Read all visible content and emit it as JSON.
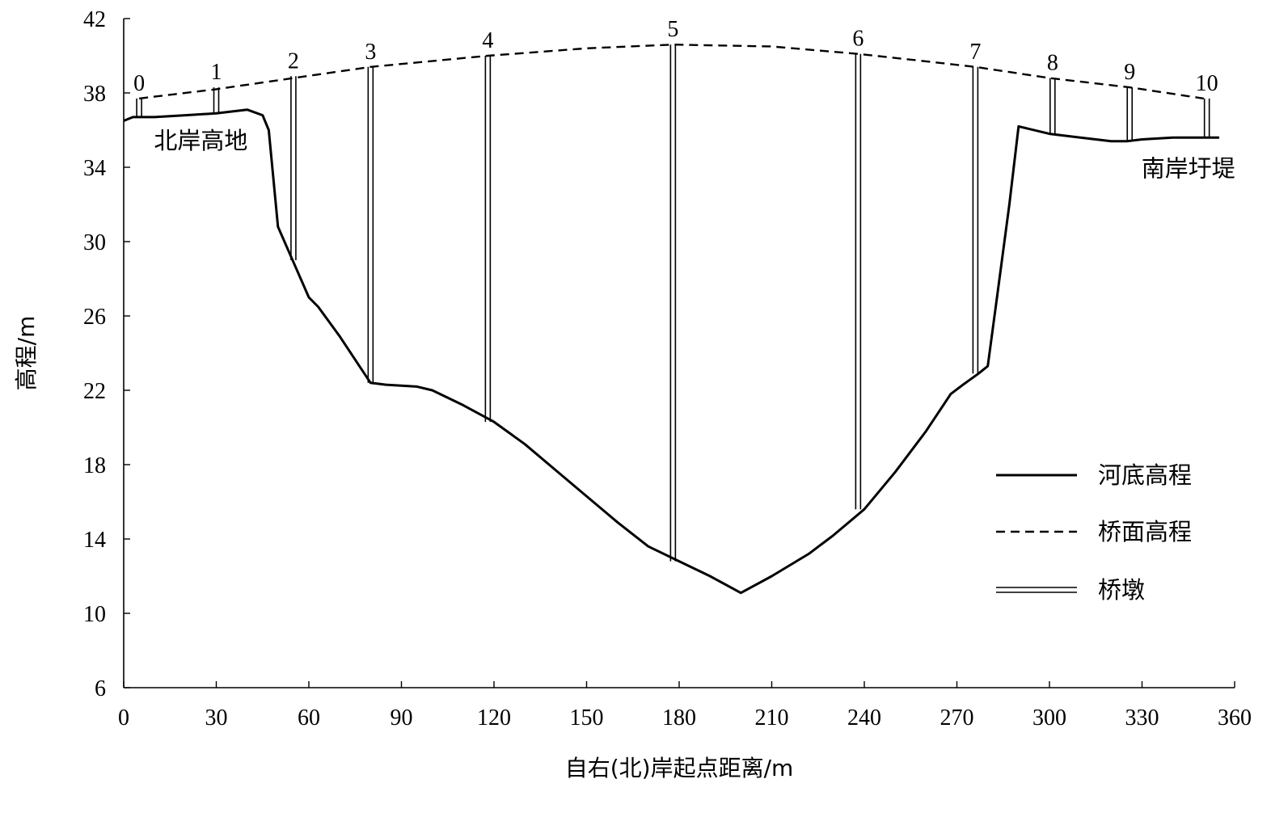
{
  "chart_data": {
    "type": "line",
    "title": "",
    "xlabel": "自右(北)岸起点距离/m",
    "ylabel": "高程/m",
    "xlim": [
      0,
      360
    ],
    "ylim": [
      6,
      42
    ],
    "x_ticks": [
      0,
      30,
      60,
      90,
      120,
      150,
      180,
      210,
      240,
      270,
      300,
      330,
      360
    ],
    "y_ticks": [
      6,
      10,
      14,
      18,
      22,
      26,
      30,
      34,
      38,
      42
    ],
    "grid": false,
    "legend_position": "right",
    "legend": [
      "河底高程",
      "桥面高程",
      "桥墩"
    ],
    "series": [
      {
        "name": "河底高程",
        "style": "solid",
        "x": [
          0,
          3,
          10,
          20,
          30,
          40,
          45,
          47,
          50,
          55,
          60,
          63,
          70,
          80,
          85,
          95,
          100,
          110,
          120,
          130,
          140,
          150,
          160,
          170,
          180,
          190,
          200,
          210,
          222,
          230,
          240,
          250,
          260,
          268,
          272,
          277,
          280,
          283,
          287,
          290,
          300,
          310,
          320,
          325,
          330,
          340,
          350,
          355
        ],
        "y": [
          36.5,
          36.7,
          36.7,
          36.8,
          36.9,
          37.1,
          36.8,
          36.0,
          30.8,
          28.9,
          27.0,
          26.5,
          24.9,
          22.4,
          22.3,
          22.2,
          22.0,
          21.2,
          20.3,
          19.1,
          17.7,
          16.3,
          14.9,
          13.6,
          12.8,
          12.0,
          11.1,
          12.0,
          13.2,
          14.2,
          15.6,
          17.6,
          19.8,
          21.8,
          22.3,
          22.9,
          23.3,
          27.0,
          32.0,
          36.2,
          35.8,
          35.6,
          35.4,
          35.4,
          35.5,
          35.6,
          35.6,
          35.6
        ]
      },
      {
        "name": "桥面高程",
        "style": "dashed",
        "x": [
          5,
          30,
          55,
          80,
          118,
          150,
          178,
          210,
          238,
          260,
          276,
          300,
          326,
          350
        ],
        "y": [
          37.7,
          38.2,
          38.8,
          39.4,
          40.0,
          40.4,
          40.6,
          40.5,
          40.1,
          39.7,
          39.4,
          38.8,
          38.3,
          37.7
        ]
      }
    ],
    "piers": [
      {
        "label": "0",
        "x": 5,
        "top": 37.7,
        "bottom": 36.7
      },
      {
        "label": "1",
        "x": 30,
        "top": 38.3,
        "bottom": 36.9
      },
      {
        "label": "2",
        "x": 55,
        "top": 38.9,
        "bottom": 29.0
      },
      {
        "label": "3",
        "x": 80,
        "top": 39.4,
        "bottom": 22.4
      },
      {
        "label": "4",
        "x": 118,
        "top": 40.0,
        "bottom": 20.3
      },
      {
        "label": "5",
        "x": 178,
        "top": 40.6,
        "bottom": 12.8
      },
      {
        "label": "6",
        "x": 238,
        "top": 40.1,
        "bottom": 15.6
      },
      {
        "label": "7",
        "x": 276,
        "top": 39.4,
        "bottom": 22.9
      },
      {
        "label": "8",
        "x": 301,
        "top": 38.8,
        "bottom": 35.8
      },
      {
        "label": "9",
        "x": 326,
        "top": 38.3,
        "bottom": 35.4
      },
      {
        "label": "10",
        "x": 351,
        "top": 37.7,
        "bottom": 35.6
      }
    ],
    "annotations": [
      {
        "text": "北岸高地",
        "x": 25,
        "y": 35.0
      },
      {
        "text": "南岸圩堤",
        "x": 345,
        "y": 33.5
      }
    ]
  }
}
